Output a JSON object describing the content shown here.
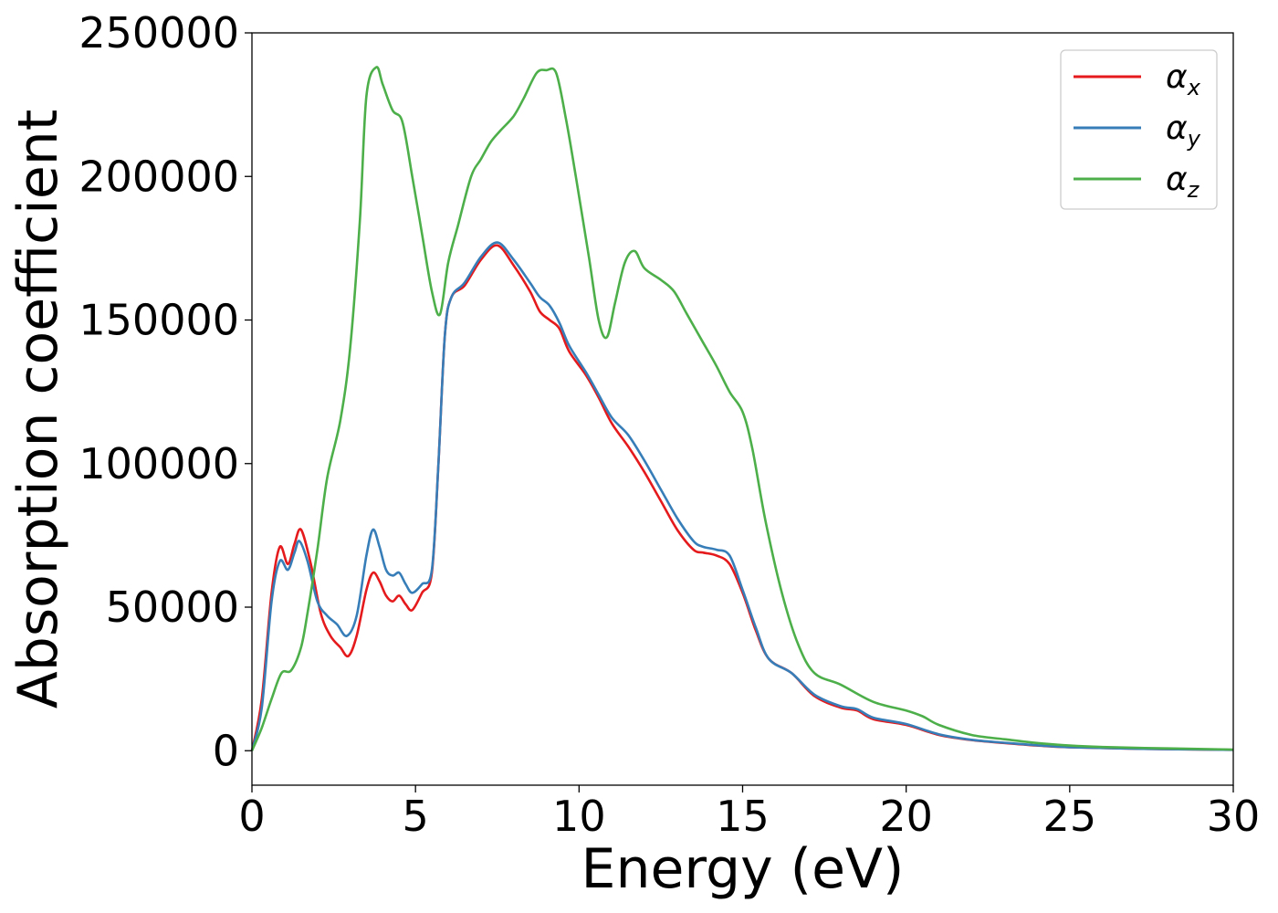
{
  "chart_data": {
    "type": "line",
    "xlabel": "Energy (eV)",
    "ylabel": "Absorption coefficient",
    "xlim": [
      0,
      30
    ],
    "ylim": [
      -12000,
      250000
    ],
    "x_ticks": [
      "0",
      "5",
      "10",
      "15",
      "20",
      "25",
      "30"
    ],
    "y_ticks": [
      "0",
      "50000",
      "100000",
      "150000",
      "200000",
      "250000"
    ],
    "x_tick_values": [
      0,
      5,
      10,
      15,
      20,
      25,
      30
    ],
    "y_tick_values": [
      0,
      50000,
      100000,
      150000,
      200000,
      250000
    ],
    "grid": false,
    "legend_position": "top-right",
    "series": [
      {
        "name": "αx",
        "symbol": "α",
        "subscript": "x",
        "color": "#e41a1c",
        "points": [
          [
            0,
            0
          ],
          [
            0.3,
            18000
          ],
          [
            0.6,
            55000
          ],
          [
            0.85,
            71000
          ],
          [
            1.1,
            65000
          ],
          [
            1.3,
            72000
          ],
          [
            1.5,
            77000
          ],
          [
            1.8,
            65000
          ],
          [
            2.1,
            48000
          ],
          [
            2.4,
            40000
          ],
          [
            2.7,
            36000
          ],
          [
            2.95,
            33000
          ],
          [
            3.2,
            40000
          ],
          [
            3.5,
            56000
          ],
          [
            3.7,
            62000
          ],
          [
            3.9,
            59000
          ],
          [
            4.1,
            54000
          ],
          [
            4.3,
            52000
          ],
          [
            4.5,
            54000
          ],
          [
            4.7,
            51000
          ],
          [
            4.9,
            49000
          ],
          [
            5.2,
            55000
          ],
          [
            5.5,
            62000
          ],
          [
            5.7,
            100000
          ],
          [
            5.9,
            145000
          ],
          [
            6.1,
            158000
          ],
          [
            6.5,
            162000
          ],
          [
            7.0,
            171000
          ],
          [
            7.5,
            176000
          ],
          [
            8.0,
            169000
          ],
          [
            8.5,
            160000
          ],
          [
            8.8,
            153000
          ],
          [
            9.1,
            150000
          ],
          [
            9.4,
            147000
          ],
          [
            9.7,
            139000
          ],
          [
            10.2,
            131000
          ],
          [
            10.6,
            123000
          ],
          [
            11.0,
            114000
          ],
          [
            11.5,
            106000
          ],
          [
            12.0,
            97000
          ],
          [
            12.5,
            87000
          ],
          [
            13.0,
            77000
          ],
          [
            13.5,
            70000
          ],
          [
            13.8,
            69000
          ],
          [
            14.2,
            68000
          ],
          [
            14.6,
            65000
          ],
          [
            15.0,
            55000
          ],
          [
            15.4,
            42000
          ],
          [
            15.8,
            32000
          ],
          [
            16.5,
            27000
          ],
          [
            17.2,
            19000
          ],
          [
            18.0,
            15000
          ],
          [
            18.5,
            14000
          ],
          [
            19.0,
            11000
          ],
          [
            20.0,
            9000
          ],
          [
            21.0,
            5500
          ],
          [
            22.0,
            3700
          ],
          [
            23.0,
            2700
          ],
          [
            24.0,
            1800
          ],
          [
            25.0,
            1200
          ],
          [
            27.0,
            700
          ],
          [
            30.0,
            300
          ]
        ]
      },
      {
        "name": "αy",
        "symbol": "α",
        "subscript": "y",
        "color": "#377eb8",
        "points": [
          [
            0,
            0
          ],
          [
            0.3,
            15000
          ],
          [
            0.6,
            52000
          ],
          [
            0.85,
            66000
          ],
          [
            1.1,
            63000
          ],
          [
            1.3,
            69000
          ],
          [
            1.45,
            73000
          ],
          [
            1.7,
            66000
          ],
          [
            2.0,
            52000
          ],
          [
            2.3,
            47000
          ],
          [
            2.6,
            44000
          ],
          [
            2.9,
            40000
          ],
          [
            3.2,
            47000
          ],
          [
            3.5,
            68000
          ],
          [
            3.7,
            77000
          ],
          [
            3.9,
            71000
          ],
          [
            4.1,
            63000
          ],
          [
            4.3,
            61000
          ],
          [
            4.5,
            62000
          ],
          [
            4.7,
            58000
          ],
          [
            4.9,
            55000
          ],
          [
            5.2,
            58000
          ],
          [
            5.5,
            63000
          ],
          [
            5.7,
            100000
          ],
          [
            5.9,
            145000
          ],
          [
            6.1,
            158000
          ],
          [
            6.5,
            163000
          ],
          [
            7.0,
            172000
          ],
          [
            7.5,
            177000
          ],
          [
            8.0,
            171000
          ],
          [
            8.5,
            163000
          ],
          [
            8.8,
            158000
          ],
          [
            9.1,
            155000
          ],
          [
            9.4,
            149000
          ],
          [
            9.7,
            141000
          ],
          [
            10.2,
            132000
          ],
          [
            10.6,
            124000
          ],
          [
            11.0,
            116000
          ],
          [
            11.5,
            110000
          ],
          [
            12.0,
            101000
          ],
          [
            12.5,
            91000
          ],
          [
            13.0,
            81000
          ],
          [
            13.5,
            73000
          ],
          [
            13.8,
            71000
          ],
          [
            14.2,
            70000
          ],
          [
            14.6,
            68000
          ],
          [
            15.0,
            56000
          ],
          [
            15.4,
            43000
          ],
          [
            15.8,
            32000
          ],
          [
            16.5,
            27000
          ],
          [
            17.2,
            19500
          ],
          [
            18.0,
            15500
          ],
          [
            18.5,
            14500
          ],
          [
            19.0,
            11500
          ],
          [
            20.0,
            9300
          ],
          [
            21.0,
            5700
          ],
          [
            22.0,
            3800
          ],
          [
            23.0,
            2800
          ],
          [
            24.0,
            1900
          ],
          [
            25.0,
            1200
          ],
          [
            27.0,
            700
          ],
          [
            30.0,
            300
          ]
        ]
      },
      {
        "name": "αz",
        "symbol": "α",
        "subscript": "z",
        "color": "#4daf4a",
        "points": [
          [
            0,
            0
          ],
          [
            0.3,
            8000
          ],
          [
            0.6,
            18000
          ],
          [
            0.9,
            27000
          ],
          [
            1.2,
            28000
          ],
          [
            1.5,
            36000
          ],
          [
            1.7,
            48000
          ],
          [
            2.0,
            70000
          ],
          [
            2.3,
            95000
          ],
          [
            2.7,
            115000
          ],
          [
            3.0,
            140000
          ],
          [
            3.3,
            185000
          ],
          [
            3.5,
            228000
          ],
          [
            3.8,
            238000
          ],
          [
            4.0,
            232000
          ],
          [
            4.3,
            223000
          ],
          [
            4.6,
            219000
          ],
          [
            4.9,
            200000
          ],
          [
            5.2,
            180000
          ],
          [
            5.5,
            160000
          ],
          [
            5.75,
            152000
          ],
          [
            6.0,
            170000
          ],
          [
            6.3,
            183000
          ],
          [
            6.7,
            200000
          ],
          [
            7.0,
            206000
          ],
          [
            7.3,
            212000
          ],
          [
            7.6,
            216000
          ],
          [
            8.0,
            221000
          ],
          [
            8.3,
            227000
          ],
          [
            8.7,
            236000
          ],
          [
            9.0,
            237000
          ],
          [
            9.3,
            236000
          ],
          [
            9.6,
            220000
          ],
          [
            9.9,
            200000
          ],
          [
            10.3,
            172000
          ],
          [
            10.6,
            150000
          ],
          [
            10.85,
            144000
          ],
          [
            11.1,
            156000
          ],
          [
            11.4,
            170000
          ],
          [
            11.7,
            174000
          ],
          [
            12.0,
            168000
          ],
          [
            12.5,
            164000
          ],
          [
            12.9,
            160000
          ],
          [
            13.3,
            152000
          ],
          [
            13.8,
            142000
          ],
          [
            14.2,
            134000
          ],
          [
            14.6,
            125000
          ],
          [
            15.0,
            118000
          ],
          [
            15.3,
            105000
          ],
          [
            15.7,
            80000
          ],
          [
            16.2,
            55000
          ],
          [
            16.7,
            37000
          ],
          [
            17.2,
            27000
          ],
          [
            18.0,
            23000
          ],
          [
            19.0,
            17000
          ],
          [
            20.0,
            14000
          ],
          [
            20.5,
            12000
          ],
          [
            21.0,
            9000
          ],
          [
            22.0,
            5500
          ],
          [
            23.0,
            4000
          ],
          [
            24.0,
            2700
          ],
          [
            25.0,
            1800
          ],
          [
            26.0,
            1300
          ],
          [
            28.0,
            800
          ],
          [
            30.0,
            400
          ]
        ]
      }
    ]
  }
}
